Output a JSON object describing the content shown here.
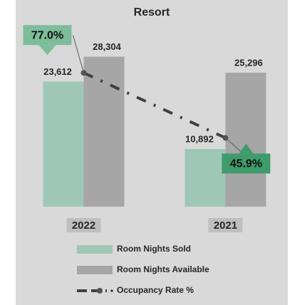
{
  "chart_data": {
    "type": "bar",
    "title": "Resort",
    "categories": [
      "2022",
      "2021"
    ],
    "series": [
      {
        "name": "Room Nights Sold",
        "color": "#9fc7b7",
        "values": [
          23612,
          10892
        ],
        "value_labels": [
          "23,612",
          "10,892"
        ]
      },
      {
        "name": "Room Nights Available",
        "color": "#a6a6a6",
        "values": [
          28304,
          25296
        ],
        "value_labels": [
          "28,304",
          "25,296"
        ]
      },
      {
        "name": "Occupancy Rate %",
        "type": "line",
        "axis": "y2",
        "color": "#404040",
        "values": [
          77.0,
          45.9
        ],
        "value_labels": [
          "77.0%",
          "45.9%"
        ]
      }
    ],
    "ylim": [
      0,
      30000
    ],
    "y2lim": [
      13,
      89
    ],
    "legend": "bottom"
  }
}
